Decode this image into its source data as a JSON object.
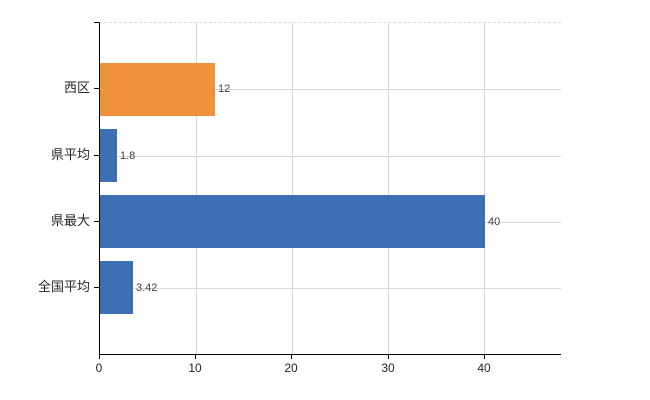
{
  "chart_data": {
    "type": "bar",
    "orientation": "horizontal",
    "title": "",
    "xlabel": "",
    "ylabel": "",
    "categories": [
      "西区",
      "県平均",
      "県最大",
      "全国平均"
    ],
    "values": [
      12,
      1.8,
      40,
      3.42
    ],
    "value_labels": [
      "12",
      "1.8",
      "40",
      "3.42"
    ],
    "bar_colors": [
      "#f0923d",
      "#3d6fb3",
      "#3d6fb3",
      "#3d6fb3"
    ],
    "x_ticks": [
      0,
      10,
      20,
      30,
      40
    ],
    "x_tick_labels": [
      "0",
      "10",
      "20",
      "30",
      "40"
    ],
    "xlim": [
      0,
      47.9
    ],
    "grid": true,
    "legend": false
  },
  "colors": {
    "gridline": "#d9d9d9",
    "axis": "#000000",
    "tick_text": "#262626",
    "value_text": "#404040",
    "background": "#ffffff",
    "accent_orange": "#f0923d",
    "accent_blue": "#3d6fb3"
  }
}
